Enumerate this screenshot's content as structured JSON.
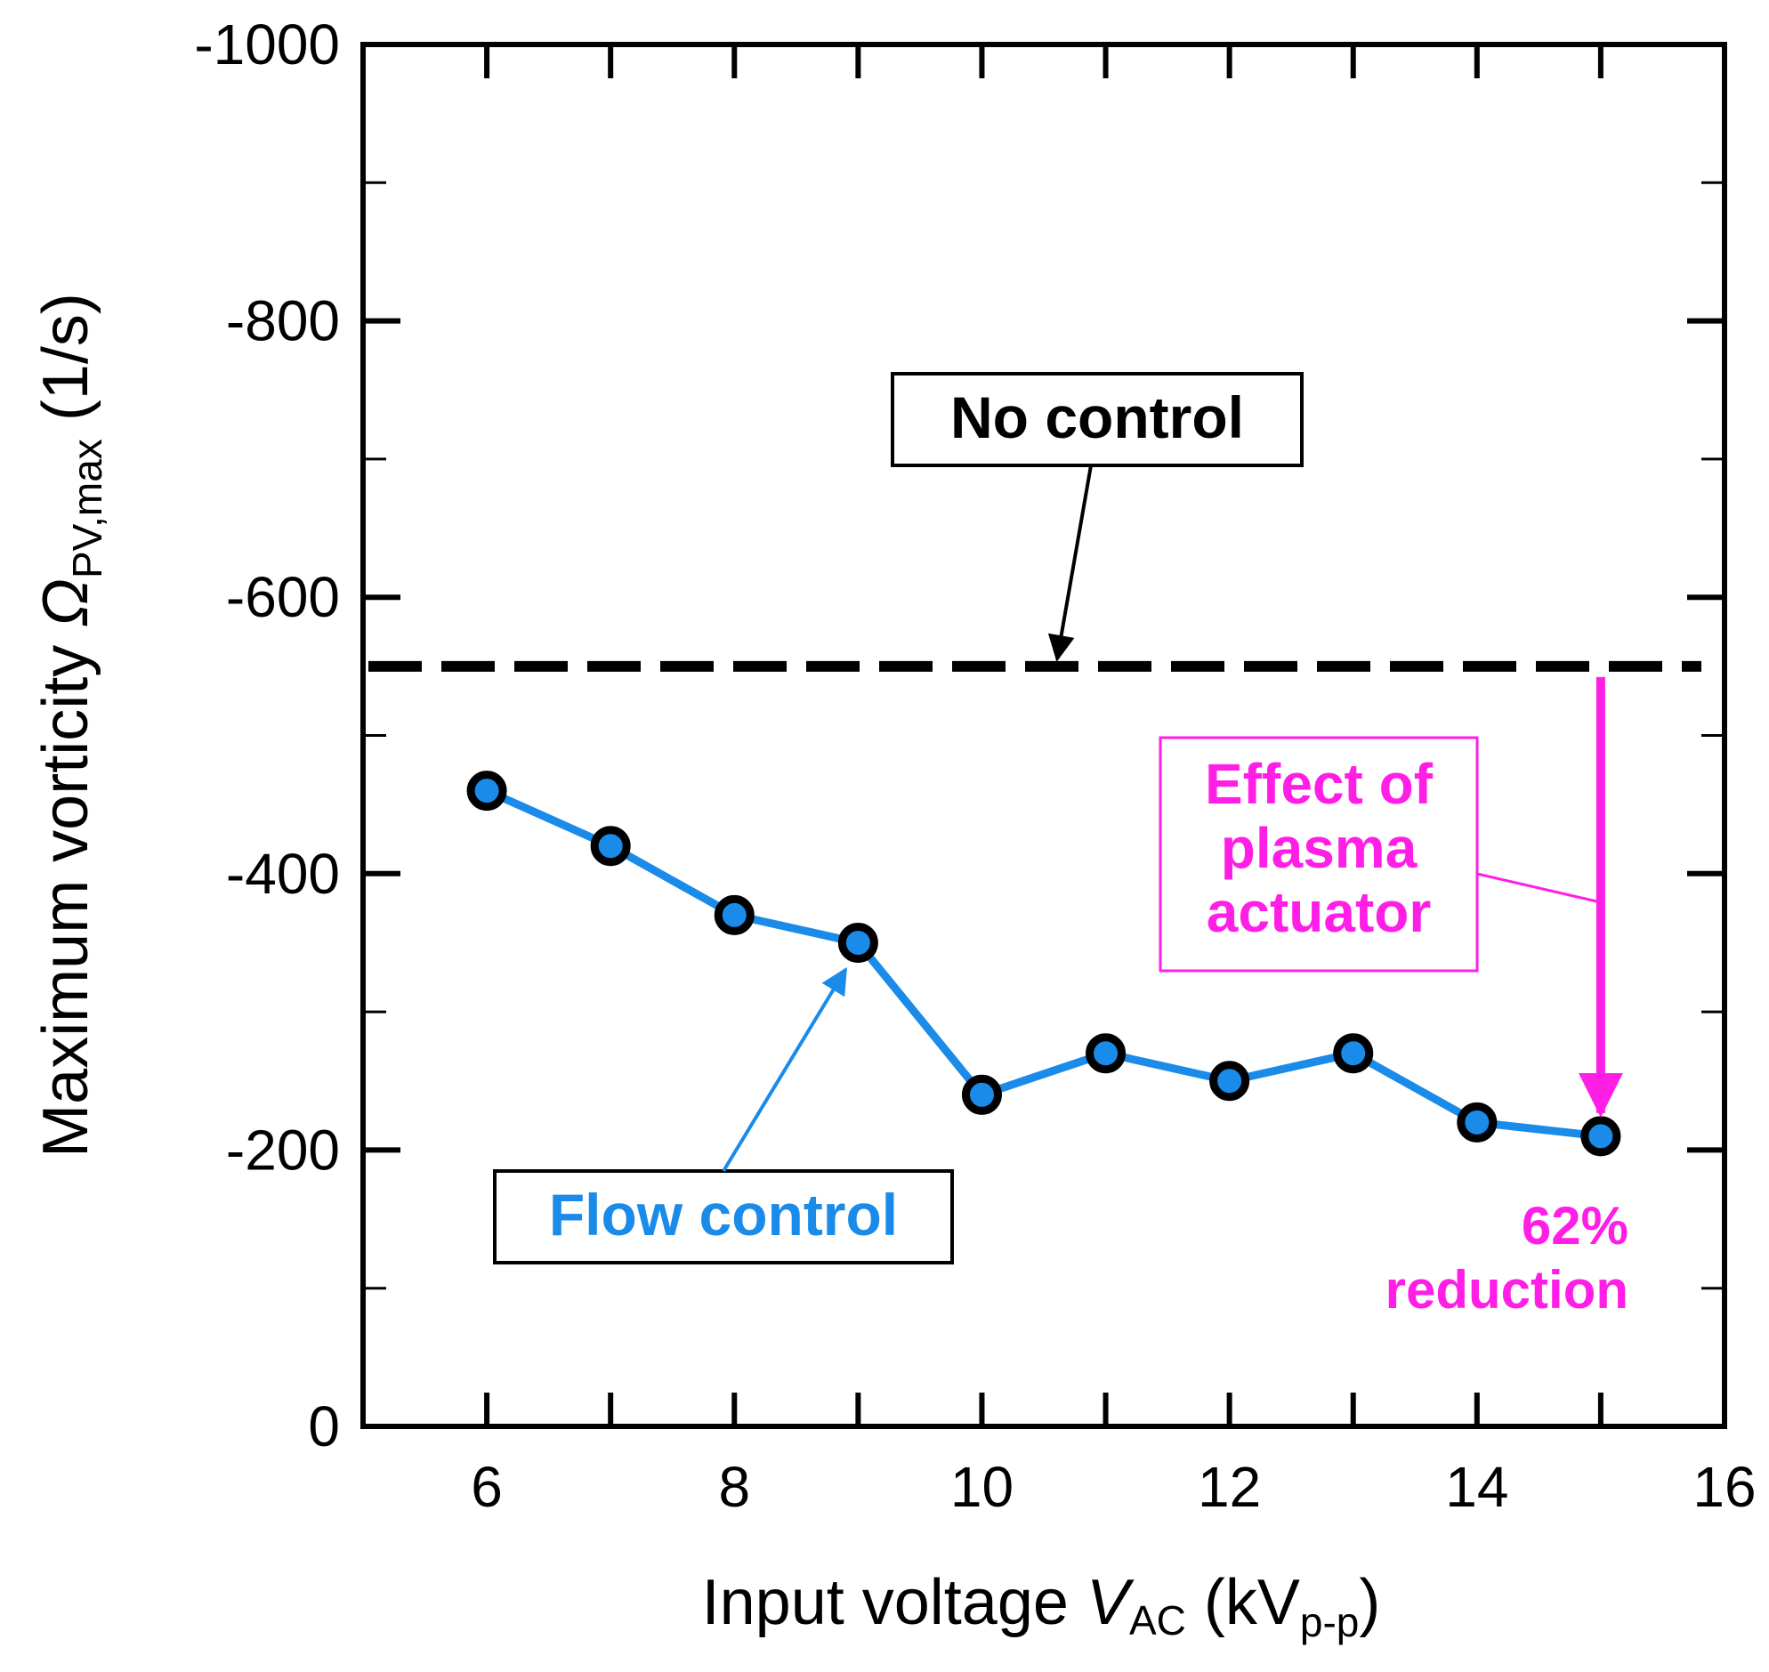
{
  "chart_data": {
    "type": "line",
    "xlabel": {
      "main": "Input voltage ",
      "var": "V",
      "sub": "AC",
      "unit_open": " (kV",
      "unit_sub": "p-p",
      "unit_close": ")"
    },
    "ylabel": {
      "main": "Maximum vorticity ",
      "var": "Ω",
      "sub": "PV,max",
      "unit": " (1/s)"
    },
    "xlim": [
      5,
      16
    ],
    "ylim": [
      0,
      -1000
    ],
    "y_inverted": true,
    "x_ticks": [
      6,
      8,
      10,
      12,
      14,
      16
    ],
    "x_tick_labels": [
      "6",
      "8",
      "10",
      "12",
      "14",
      "16"
    ],
    "y_ticks": [
      0,
      -200,
      -400,
      -600,
      -800,
      -1000
    ],
    "y_tick_labels": [
      "0",
      "-200",
      "-400",
      "-600",
      "-800",
      "-1000"
    ],
    "grid": false,
    "series": [
      {
        "name": "Flow control",
        "color": "#1a8be8",
        "x": [
          6,
          7,
          8,
          9,
          10,
          11,
          12,
          13,
          14,
          15
        ],
        "y": [
          -460,
          -420,
          -370,
          -350,
          -240,
          -270,
          -250,
          -270,
          -220,
          -210
        ]
      },
      {
        "name": "No control",
        "color": "#000000",
        "style": "dashed",
        "x": [
          5,
          16
        ],
        "y": [
          -550,
          -550
        ]
      }
    ],
    "annotations": {
      "no_control": "No control",
      "flow_control": "Flow control",
      "effect": [
        "Effect of",
        "plasma",
        "actuator"
      ],
      "reduction": [
        "62%",
        "reduction"
      ],
      "effect_color": "#ff1ee6"
    }
  }
}
